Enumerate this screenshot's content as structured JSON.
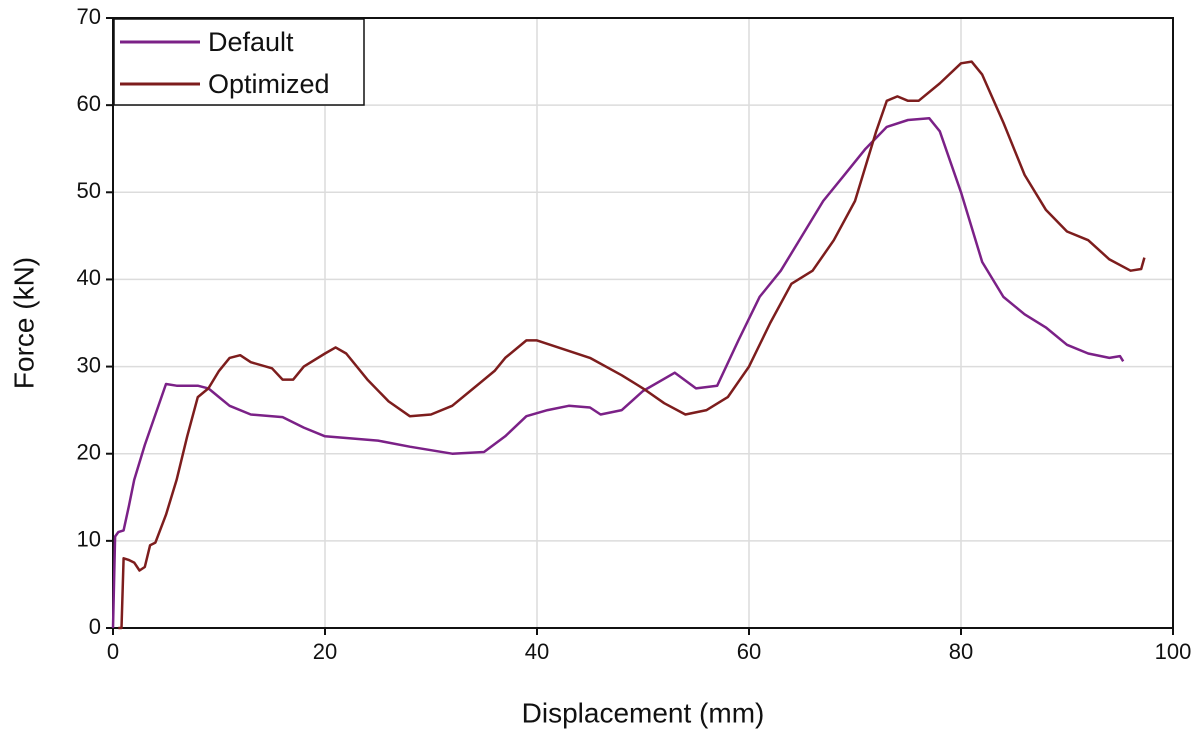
{
  "chart_data": {
    "type": "line",
    "x_label": "Displacement (mm)",
    "y_label": "Force (kN)",
    "xlim": [
      0,
      100
    ],
    "ylim": [
      0,
      70
    ],
    "xticks": [
      0,
      20,
      40,
      60,
      80,
      100
    ],
    "yticks": [
      0,
      10,
      20,
      30,
      40,
      50,
      60,
      70
    ],
    "grid": true,
    "legend": "upper-left",
    "series": [
      {
        "name": "Default",
        "color": "#7b2187",
        "x": [
          0,
          0.2,
          0.5,
          1,
          1.5,
          2,
          3,
          4,
          5,
          6,
          7,
          8,
          9,
          10,
          11,
          13,
          16,
          18,
          20,
          22,
          25,
          28,
          30,
          32,
          35,
          37,
          39,
          41,
          43,
          45,
          46,
          48,
          50,
          53,
          55,
          57,
          59,
          61,
          63,
          65,
          67,
          69,
          71,
          73,
          75,
          77,
          78,
          80,
          82,
          84,
          86,
          88,
          90,
          92,
          94,
          95,
          95.3
        ],
        "values": [
          0,
          10.5,
          11,
          11.2,
          14,
          17,
          21,
          24.5,
          28,
          27.8,
          27.8,
          27.8,
          27.5,
          26.5,
          25.5,
          24.5,
          24.2,
          23,
          22,
          21.8,
          21.5,
          20.8,
          20.4,
          20,
          20.2,
          22,
          24.3,
          25,
          25.5,
          25.3,
          24.5,
          25,
          27.2,
          29.3,
          27.5,
          27.8,
          33,
          38,
          41,
          45,
          49,
          52,
          55,
          57.5,
          58.3,
          58.5,
          57,
          50,
          42,
          38,
          36,
          34.5,
          32.5,
          31.5,
          31,
          31.2,
          30.6
        ]
      },
      {
        "name": "Optimized",
        "color": "#7d1d1d",
        "x": [
          0.5,
          0.8,
          1,
          1.5,
          2,
          2.5,
          3,
          3.5,
          4,
          5,
          6,
          7,
          8,
          9,
          10,
          11,
          12,
          13,
          15,
          16,
          17,
          18,
          20,
          21,
          22,
          24,
          26,
          28,
          30,
          32,
          34,
          36,
          37,
          39,
          40,
          42,
          45,
          48,
          50,
          52,
          54,
          56,
          58,
          60,
          62,
          64,
          66,
          68,
          70,
          72,
          73,
          74,
          75,
          76,
          78,
          80,
          81,
          82,
          84,
          86,
          88,
          90,
          92,
          94,
          96,
          97,
          97.3
        ],
        "values": [
          0,
          0,
          8,
          7.8,
          7.5,
          6.6,
          7,
          9.5,
          9.8,
          13,
          17,
          22,
          26.5,
          27.5,
          29.5,
          31,
          31.3,
          30.5,
          29.8,
          28.5,
          28.5,
          30,
          31.5,
          32.2,
          31.5,
          28.5,
          26,
          24.3,
          24.5,
          25.5,
          27.5,
          29.5,
          31,
          33,
          33,
          32.2,
          31,
          29,
          27.5,
          25.8,
          24.5,
          25,
          26.5,
          30,
          35,
          39.5,
          41,
          44.5,
          49,
          57,
          60.5,
          61,
          60.5,
          60.5,
          62.5,
          64.8,
          65,
          63.5,
          58,
          52,
          48,
          45.5,
          44.5,
          42.3,
          41,
          41.2,
          42.5
        ]
      }
    ]
  }
}
